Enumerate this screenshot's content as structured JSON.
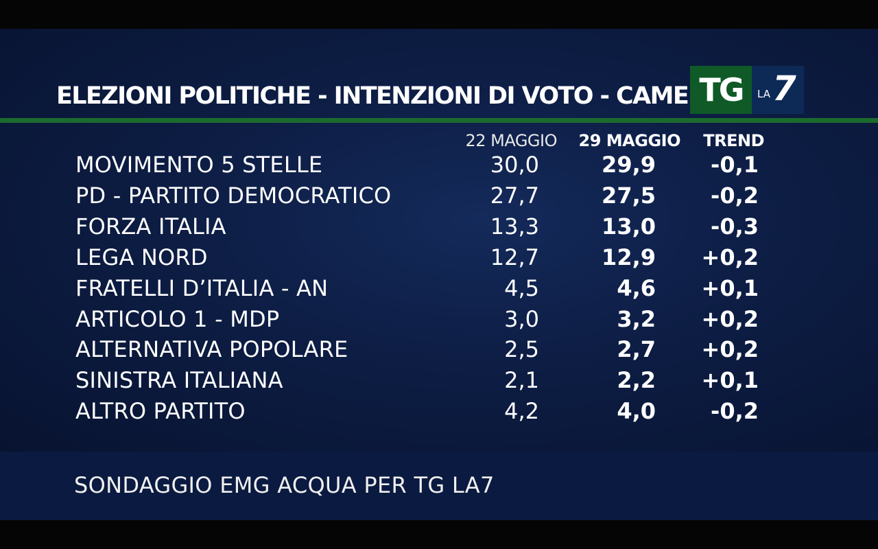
{
  "title": "ELEZIONI POLITICHE - INTENZIONI DI VOTO - CAMERA",
  "logo": {
    "tg": "TG",
    "la": "LA",
    "seven": "7"
  },
  "headers": {
    "prev": "22 MAGGIO",
    "curr": "29 MAGGIO",
    "trend": "TREND"
  },
  "footer": "SONDAGGIO EMG ACQUA PER TG LA7",
  "chart_data": {
    "type": "table",
    "title": "ELEZIONI POLITICHE - INTENZIONI DI VOTO - CAMERA",
    "columns": [
      "",
      "22 MAGGIO",
      "29 MAGGIO",
      "TREND"
    ],
    "rows": [
      {
        "party": "MOVIMENTO 5 STELLE",
        "prev": "30,0",
        "curr": "29,9",
        "trend": "-0,1"
      },
      {
        "party": "PD - PARTITO DEMOCRATICO",
        "prev": "27,7",
        "curr": "27,5",
        "trend": "-0,2"
      },
      {
        "party": "FORZA ITALIA",
        "prev": "13,3",
        "curr": "13,0",
        "trend": "-0,3"
      },
      {
        "party": "LEGA NORD",
        "prev": "12,7",
        "curr": "12,9",
        "trend": "+0,2"
      },
      {
        "party": "FRATELLI D’ITALIA - AN",
        "prev": "4,5",
        "curr": "4,6",
        "trend": "+0,1"
      },
      {
        "party": "ARTICOLO 1 - MDP",
        "prev": "3,0",
        "curr": "3,2",
        "trend": "+0,2"
      },
      {
        "party": "ALTERNATIVA POPOLARE",
        "prev": "2,5",
        "curr": "2,7",
        "trend": "+0,2"
      },
      {
        "party": "SINISTRA ITALIANA",
        "prev": "2,1",
        "curr": "2,2",
        "trend": "+0,1"
      },
      {
        "party": "ALTRO PARTITO",
        "prev": "4,2",
        "curr": "4,0",
        "trend": "-0,2"
      }
    ],
    "source": "SONDAGGIO EMG ACQUA PER TG LA7"
  }
}
